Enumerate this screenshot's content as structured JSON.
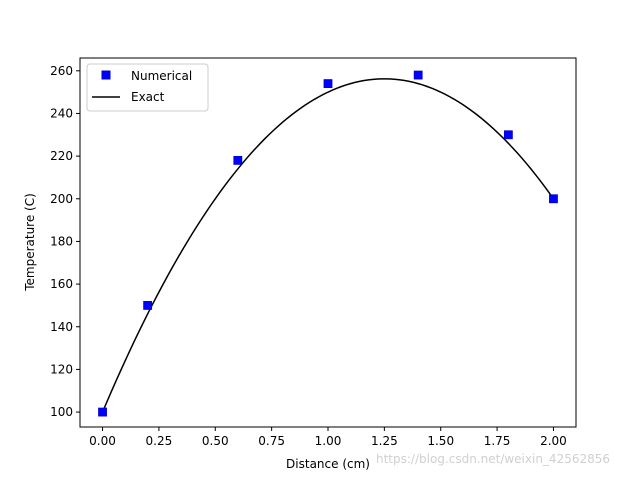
{
  "chart_data": {
    "type": "line",
    "title": "",
    "xlabel": "Distance (cm)",
    "ylabel": "Temperature (C)",
    "xlim": [
      -0.1,
      2.1
    ],
    "ylim": [
      93,
      266
    ],
    "xticks": [
      "0.00",
      "0.25",
      "0.50",
      "0.75",
      "1.00",
      "1.25",
      "1.50",
      "1.75",
      "2.00"
    ],
    "yticks": [
      "100",
      "120",
      "140",
      "160",
      "180",
      "200",
      "220",
      "240",
      "260"
    ],
    "grid": false,
    "legend_position": "top-left",
    "series": [
      {
        "name": "Numerical",
        "style": "square markers",
        "color": "#0000ff",
        "x": [
          0.0,
          0.2,
          0.6,
          1.0,
          1.4,
          1.8,
          2.0
        ],
        "y": [
          100,
          150,
          218,
          254,
          258,
          230,
          200
        ]
      },
      {
        "name": "Exact",
        "style": "line",
        "color": "#000000",
        "equation": "T = 100 + 250x - 100x^2",
        "x": [
          0.0,
          0.25,
          0.5,
          0.75,
          1.0,
          1.25,
          1.5,
          1.75,
          2.0
        ],
        "y": [
          100,
          156.25,
          200,
          231.25,
          250,
          256.25,
          250,
          231.25,
          200
        ]
      }
    ]
  },
  "watermark": "https://blog.csdn.net/weixin_42562856"
}
